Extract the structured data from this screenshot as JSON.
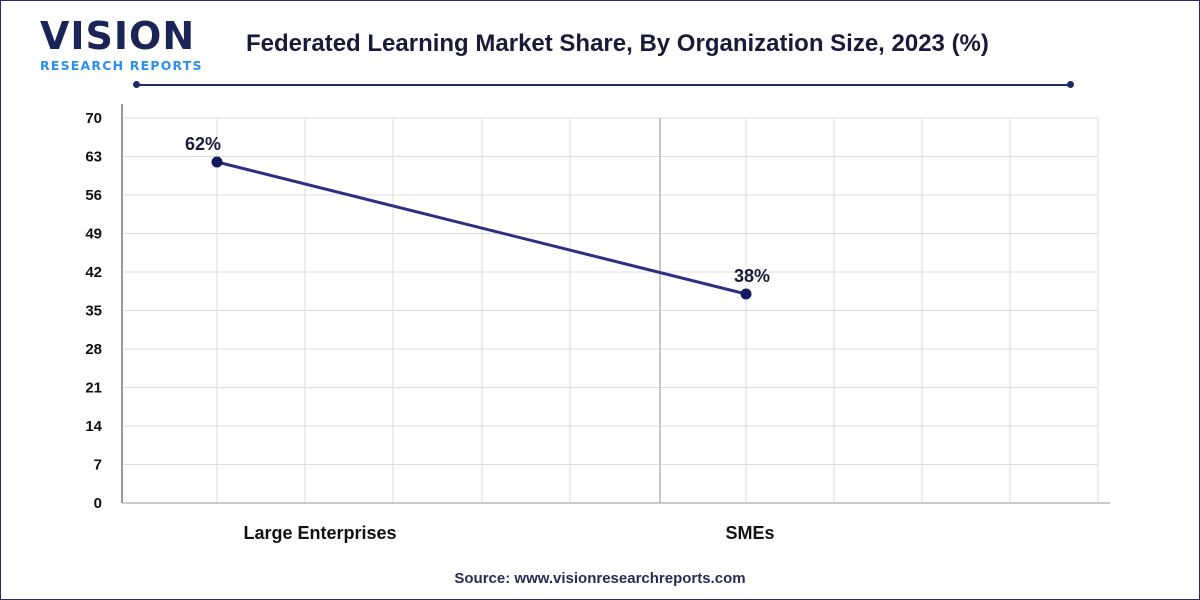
{
  "logo": {
    "main": "VISION",
    "sub": "RESEARCH REPORTS"
  },
  "source": "Source: www.visionresearchreports.com",
  "colors": {
    "line": "#2e2f80",
    "marker": "#141a5e",
    "grid": "#dddddd",
    "frame": "#2d2a6b"
  },
  "chart_data": {
    "type": "line",
    "title": "Federated Learning Market Share, By Organization Size, 2023 (%)",
    "categories": [
      "Large Enterprises",
      "SMEs"
    ],
    "series": [
      {
        "values": [
          62,
          38
        ],
        "labels": [
          "62%",
          "38%"
        ]
      }
    ],
    "ylim": [
      0,
      70
    ],
    "yticks": [
      0,
      7,
      14,
      21,
      28,
      35,
      42,
      49,
      56,
      63,
      70
    ],
    "grid": true,
    "xlabel": "",
    "ylabel": ""
  }
}
